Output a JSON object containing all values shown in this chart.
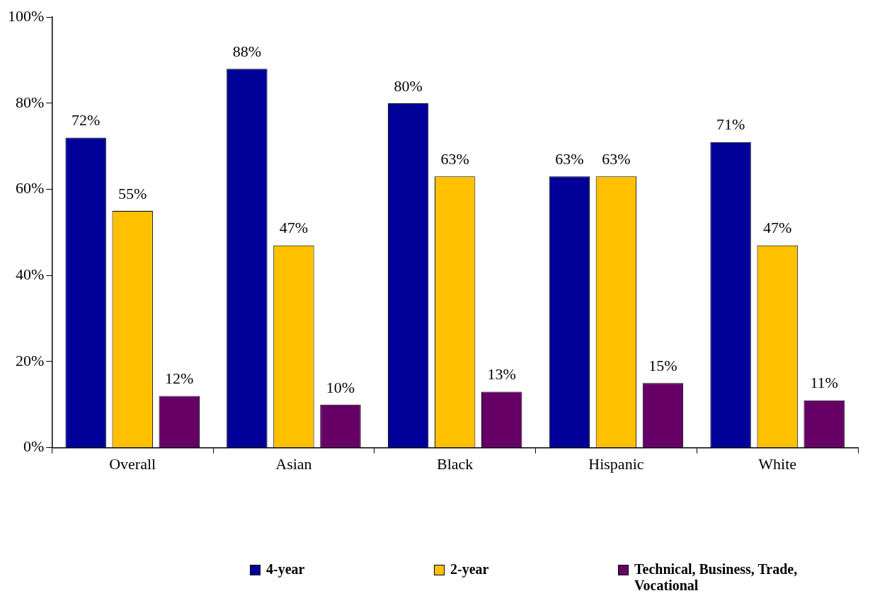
{
  "chart_data": {
    "type": "bar",
    "categories": [
      "Overall",
      "Asian",
      "Black",
      "Hispanic",
      "White"
    ],
    "series": [
      {
        "name": "4-year",
        "color": "#000099",
        "values": [
          72,
          88,
          80,
          63,
          71
        ],
        "value_labels": [
          "72%",
          "88%",
          "80%",
          "63%",
          "71%"
        ]
      },
      {
        "name": "2-year",
        "color": "#ffc000",
        "values": [
          55,
          47,
          63,
          63,
          47
        ],
        "value_labels": [
          "55%",
          "47%",
          "63%",
          "63%",
          "47%"
        ]
      },
      {
        "name": "Technical, Business, Trade, Vocational",
        "color": "#660066",
        "values": [
          12,
          10,
          13,
          15,
          11
        ],
        "value_labels": [
          "12%",
          "10%",
          "13%",
          "15%",
          "11%"
        ]
      }
    ],
    "ylim": [
      0,
      100
    ],
    "yticks": [
      {
        "value": 0,
        "label": "0%"
      },
      {
        "value": 20,
        "label": "20%"
      },
      {
        "value": 40,
        "label": "40%"
      },
      {
        "value": 60,
        "label": "60%"
      },
      {
        "value": 80,
        "label": "80%"
      },
      {
        "value": 100,
        "label": "100%"
      }
    ],
    "grid": false,
    "legend": "bottom"
  }
}
